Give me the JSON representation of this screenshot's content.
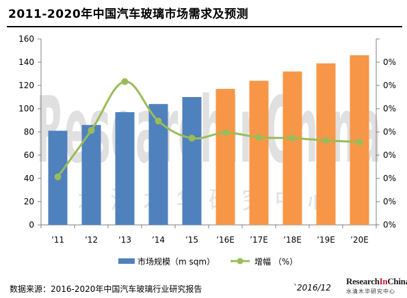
{
  "title": "2011-2020年中国汽车玻璃市场需求及预测",
  "footer": {
    "source": "数据来源：2016-2020年中国汽车玻璃行业研究报告",
    "date": "`2016/12"
  },
  "watermark": {
    "main": "ResearchInChina",
    "sub": "水清木华研究中心"
  },
  "logo": {
    "prefix": "Research",
    "highlight": "In",
    "suffix": "China",
    "sub": "水清木华研究中心"
  },
  "chart_data": {
    "type": "bar",
    "categories": [
      "’11",
      "’12",
      "’13",
      "’14",
      "’15",
      "’16E",
      "’17E",
      "’18E",
      "’19E",
      "’20E"
    ],
    "series": [
      {
        "name": "市场规模（m sqm）",
        "type": "bar",
        "axis": "left",
        "values": [
          81,
          86,
          97,
          104,
          110,
          117,
          124,
          132,
          139,
          146
        ],
        "colors": [
          "#4f81bd",
          "#4f81bd",
          "#4f81bd",
          "#4f81bd",
          "#4f81bd",
          "#f79646",
          "#f79646",
          "#f79646",
          "#f79646",
          "#f79646"
        ]
      },
      {
        "name": "增幅 （%）",
        "type": "line",
        "axis": "right",
        "color": "#9bbb59",
        "values": [
          6.2,
          12.2,
          18.5,
          13.4,
          11.2,
          11.9,
          11.3,
          11.2,
          10.9,
          10.7
        ]
      }
    ],
    "left_axis": {
      "min": 0,
      "max": 160,
      "ticks": [
        "0",
        "20",
        "40",
        "60",
        "80",
        "100",
        "120",
        "140",
        "160"
      ]
    },
    "right_axis": {
      "min": 0,
      "max": 24,
      "ticks": [
        "0%",
        "0%",
        "0%",
        "0%",
        "0%",
        "0%",
        "0%",
        "0%"
      ]
    },
    "legend_position": "bottom",
    "grid": false
  }
}
